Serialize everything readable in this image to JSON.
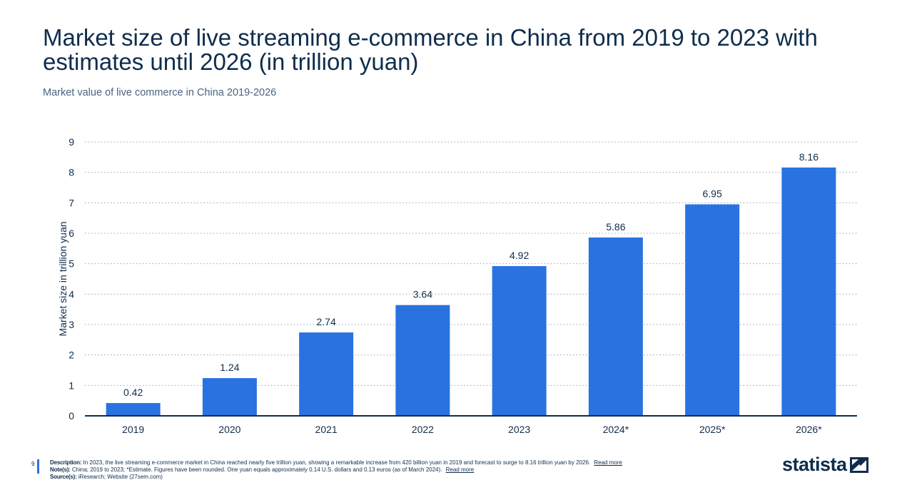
{
  "header": {
    "title": "Market size of live streaming e-commerce in China from 2019 to 2023 with estimates until 2026 (in trillion yuan)",
    "subtitle": "Market value of live commerce in China 2019-2026"
  },
  "chart_data": {
    "type": "bar",
    "categories": [
      "2019",
      "2020",
      "2021",
      "2022",
      "2023",
      "2024*",
      "2025*",
      "2026*"
    ],
    "values": [
      0.42,
      1.24,
      2.74,
      3.64,
      4.92,
      5.86,
      6.95,
      8.16
    ],
    "value_labels": [
      "0.42",
      "1.24",
      "2.74",
      "3.64",
      "4.92",
      "5.86",
      "6.95",
      "8.16"
    ],
    "title": "Market size of live streaming e-commerce in China from 2019 to 2023 with estimates until 2026 (in trillion yuan)",
    "xlabel": "",
    "ylabel": "Market size in trillion yuan",
    "ylim": [
      0,
      9
    ],
    "yticks": [
      "0",
      "1",
      "2",
      "3",
      "4",
      "5",
      "6",
      "7",
      "8",
      "9"
    ],
    "grid": true,
    "bar_color": "#2a72df"
  },
  "footer": {
    "page_number": "9",
    "description_label": "Description:",
    "description_text": "In 2023, the live streaming e-commerce market in China reached nearly five trillion yuan, showing a remarkable increase from 420 billion yuan in 2019 and forecast to surge to 8.16 trillion yuan by 2026.",
    "description_link": "Read more",
    "notes_label": "Note(s):",
    "notes_text": "China; 2019 to 2023; *Estimate. Figures have been rounded. One yuan equals approximately 0.14 U.S. dollars and 0.13 euros (as of March 2024).",
    "notes_link": "Read more",
    "source_label": "Source(s):",
    "source_text": "iResearch; Website (27sem.com)"
  },
  "brand": {
    "name": "statista",
    "logo_icon": "statista-logo-icon",
    "accent_color": "#2a72df",
    "text_color": "#0f2d4c"
  }
}
